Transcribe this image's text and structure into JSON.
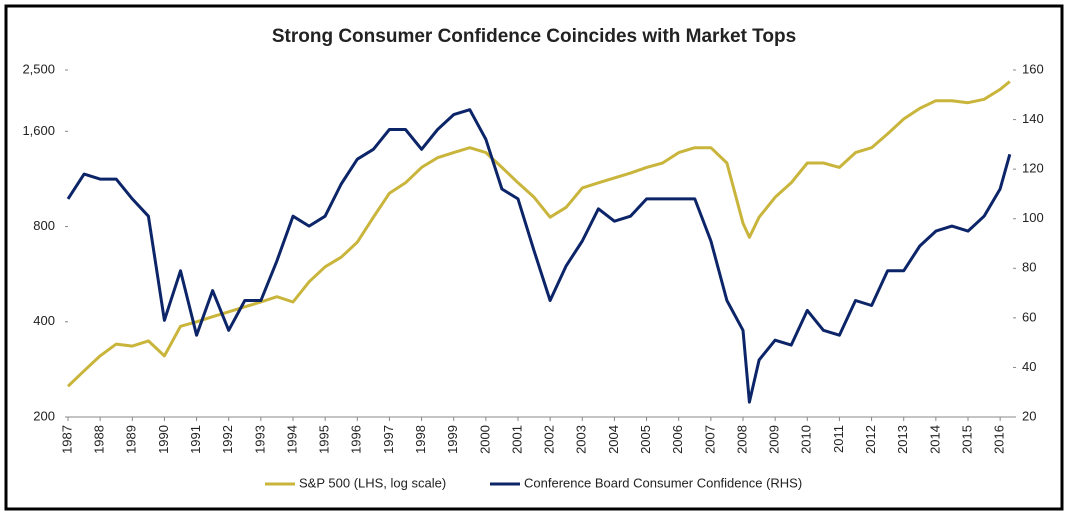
{
  "chart_data": {
    "type": "line",
    "title": "Strong Consumer Confidence Coincides with Market Tops",
    "x": [
      1987,
      1987.5,
      1988,
      1988.5,
      1989,
      1989.5,
      1990,
      1990.5,
      1991,
      1991.5,
      1992,
      1992.5,
      1993,
      1993.5,
      1994,
      1994.5,
      1995,
      1995.5,
      1996,
      1996.5,
      1997,
      1997.5,
      1998,
      1998.5,
      1999,
      1999.5,
      2000,
      2000.5,
      2001,
      2001.5,
      2002,
      2002.5,
      2003,
      2003.5,
      2004,
      2004.5,
      2005,
      2005.5,
      2006,
      2006.5,
      2007,
      2007.5,
      2008,
      2008.2,
      2008.5,
      2009,
      2009.5,
      2010,
      2010.5,
      2011,
      2011.5,
      2012,
      2012.5,
      2013,
      2013.5,
      2014,
      2014.5,
      2015,
      2015.5,
      2016,
      2016.3
    ],
    "series": [
      {
        "name": "S&P 500 (LHS, log scale)",
        "color": "#c9b53c",
        "axis": "y",
        "values": [
          250,
          280,
          312,
          340,
          335,
          348,
          312,
          387,
          400,
          415,
          430,
          446,
          462,
          480,
          462,
          535,
          597,
          640,
          714,
          856,
          1020,
          1100,
          1230,
          1320,
          1370,
          1420,
          1370,
          1230,
          1100,
          990,
          856,
          920,
          1060,
          1100,
          1140,
          1180,
          1230,
          1270,
          1370,
          1420,
          1420,
          1270,
          820,
          740,
          856,
          990,
          1100,
          1270,
          1270,
          1230,
          1370,
          1420,
          1570,
          1750,
          1890,
          2000,
          2000,
          1970,
          2020,
          2170,
          2300
        ]
      },
      {
        "name": "Conference Board Consumer Confidence (RHS)",
        "color": "#0c2468",
        "axis": "y2",
        "values": [
          108,
          118,
          116,
          116,
          108,
          101,
          59,
          79,
          53,
          71,
          55,
          67,
          67,
          83,
          101,
          97,
          101,
          114,
          124,
          128,
          136,
          136,
          128,
          136,
          142,
          144,
          132,
          112,
          108,
          87,
          67,
          81,
          91,
          104,
          99,
          101,
          108,
          108,
          108,
          108,
          91,
          67,
          55,
          26,
          43,
          51,
          49,
          63,
          55,
          53,
          67,
          65,
          79,
          79,
          89,
          95,
          97,
          95,
          101,
          112,
          126
        ]
      }
    ],
    "xlim": [
      1987,
      2016.4
    ],
    "xticks": [
      1987,
      1988,
      1989,
      1990,
      1991,
      1992,
      1993,
      1994,
      1995,
      1996,
      1997,
      1998,
      1999,
      2000,
      2001,
      2002,
      2003,
      2004,
      2005,
      2006,
      2007,
      2008,
      2009,
      2010,
      2011,
      2012,
      2013,
      2014,
      2015,
      2016
    ],
    "ylim": [
      200,
      2500
    ],
    "ylog": true,
    "yticks": [
      200,
      400,
      800,
      {
        "value": 1600,
        "label": "1,600"
      },
      {
        "value": 2500,
        "label": "2,500"
      }
    ],
    "y2lim": [
      20,
      160
    ],
    "y2ticks": [
      20,
      40,
      60,
      80,
      100,
      120,
      140,
      160
    ],
    "legend": "bottom"
  }
}
